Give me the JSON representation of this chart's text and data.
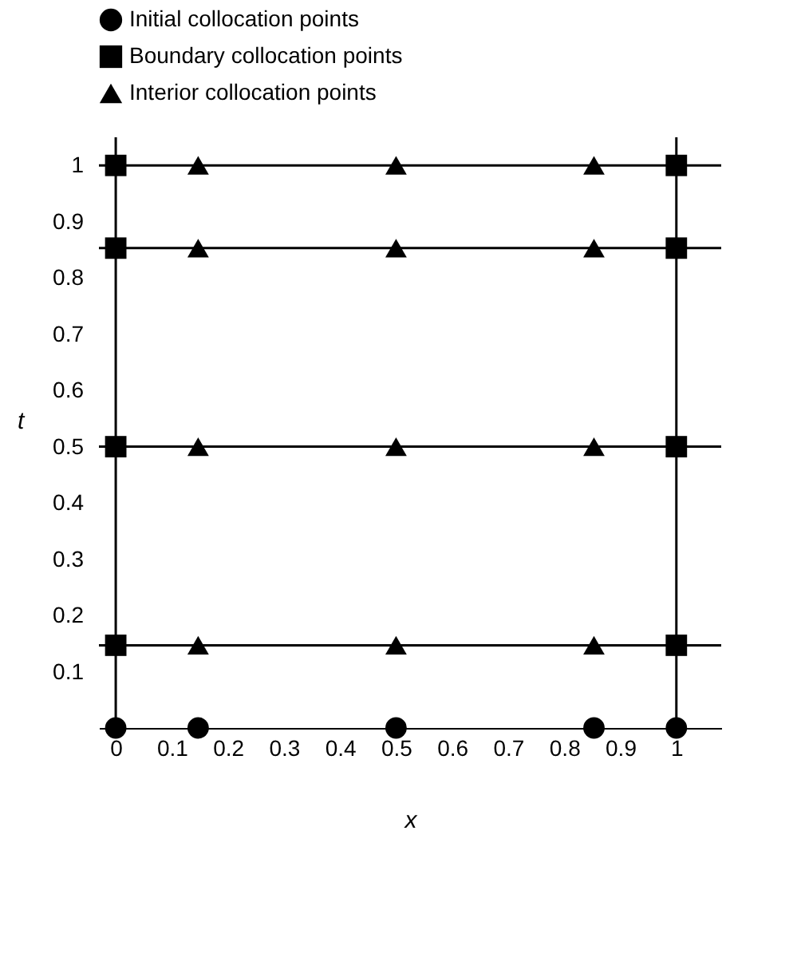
{
  "chart_data": {
    "type": "scatter",
    "xlabel": "x",
    "ylabel": "t",
    "xlim": [
      -0.03,
      1.08
    ],
    "ylim": [
      0,
      1.05
    ],
    "xticks": [
      0,
      0.1,
      0.2,
      0.3,
      0.4,
      0.5,
      0.6,
      0.7,
      0.8,
      0.9,
      1
    ],
    "yticks": [
      0.1,
      0.2,
      0.3,
      0.4,
      0.5,
      0.6,
      0.7,
      0.8,
      0.9,
      1
    ],
    "grid": false,
    "legend": "top",
    "series": [
      {
        "name": "Initial collocation points",
        "color": "#000000",
        "marker": "circle",
        "x": [
          0,
          0.147,
          0.5,
          0.853,
          1
        ],
        "values": [
          0,
          0,
          0,
          0,
          0
        ]
      },
      {
        "name": "Boundary collocation points",
        "color": "#000000",
        "marker": "square",
        "x": [
          0,
          0,
          0,
          0,
          1,
          1,
          1,
          1
        ],
        "values": [
          0.147,
          0.5,
          0.853,
          1,
          0.147,
          0.5,
          0.853,
          1
        ]
      },
      {
        "name": "Interior collocation points",
        "color": "#000000",
        "marker": "triangle",
        "x": [
          0.147,
          0.5,
          0.853,
          0.147,
          0.5,
          0.853,
          0.147,
          0.5,
          0.853,
          0.147,
          0.5,
          0.853
        ],
        "values": [
          0.147,
          0.147,
          0.147,
          0.5,
          0.5,
          0.5,
          0.853,
          0.853,
          0.853,
          1,
          1,
          1
        ]
      }
    ],
    "ref_lines": [
      {
        "axis": "y",
        "value": 0.147,
        "color": "#000000",
        "line_style": "solid"
      },
      {
        "axis": "y",
        "value": 0.5,
        "color": "#000000",
        "line_style": "solid"
      },
      {
        "axis": "y",
        "value": 0.853,
        "color": "#000000",
        "line_style": "solid"
      },
      {
        "axis": "y",
        "value": 1,
        "color": "#000000",
        "line_style": "solid"
      },
      {
        "axis": "x",
        "value": 0,
        "color": "#000000",
        "line_style": "solid"
      },
      {
        "axis": "x",
        "value": 1,
        "color": "#000000",
        "line_style": "solid"
      }
    ]
  }
}
